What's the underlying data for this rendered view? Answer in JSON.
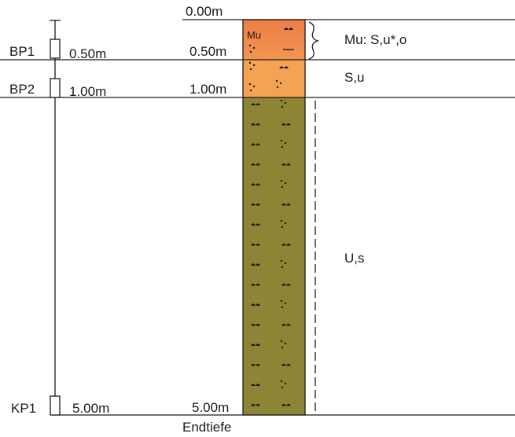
{
  "depth_labels": {
    "top": "0.00m",
    "d050": "0.50m",
    "d100": "1.00m",
    "bottom": "5.00m",
    "end_label": "Endtiefe"
  },
  "sample_points": [
    {
      "id": "BP1",
      "depth": "0.50m"
    },
    {
      "id": "BP2",
      "depth": "1.00m"
    },
    {
      "id": "KP1",
      "depth": "5.00m"
    }
  ],
  "layers": [
    {
      "code": "Mu",
      "description": "Mu: S,u*,o",
      "color": "#f08a4a",
      "from_m": 0.0,
      "to_m": 0.5
    },
    {
      "code": "",
      "description": "S,u",
      "color": "#f4a355",
      "from_m": 0.5,
      "to_m": 1.0
    },
    {
      "code": "",
      "description": "U,s",
      "color": "#8e8435",
      "from_m": 1.0,
      "to_m": 5.0
    }
  ],
  "colors": {
    "line": "#1a1a1a",
    "fill_top": "#f08a4a",
    "fill_mid": "#f4a355",
    "fill_bottom": "#8e8435"
  }
}
